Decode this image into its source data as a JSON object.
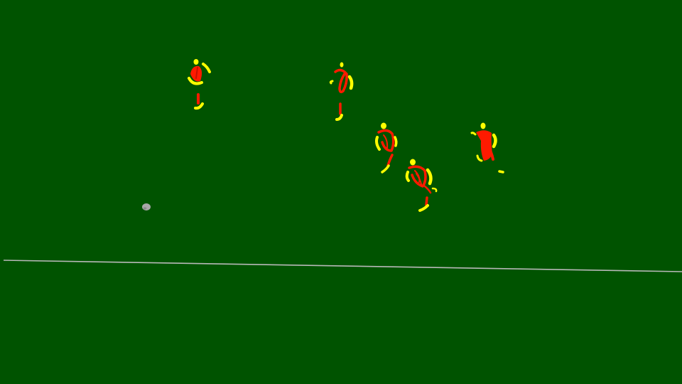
{
  "scene": {
    "type": "football-pitch",
    "colors": {
      "pitch": "#005300",
      "line": "#b8b8b8",
      "shirt": "#ff1a00",
      "skin": "#ffff00",
      "ball": "#a8a8a8"
    },
    "players": [
      {
        "id": "player-1"
      },
      {
        "id": "player-2"
      },
      {
        "id": "player-3"
      },
      {
        "id": "player-4"
      },
      {
        "id": "player-5"
      }
    ],
    "ball": {
      "id": "ball"
    }
  }
}
